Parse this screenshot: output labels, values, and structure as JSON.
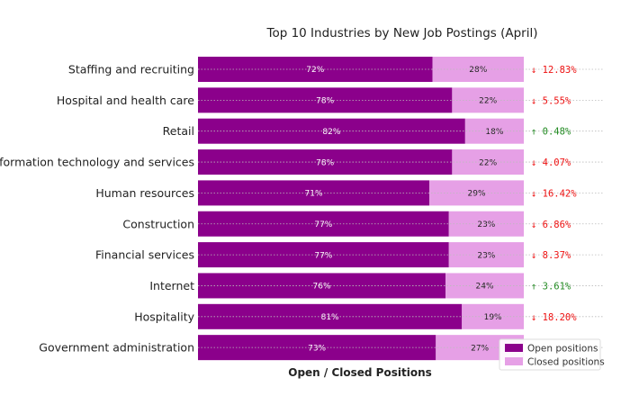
{
  "chart_data": {
    "type": "bar",
    "orientation": "horizontal",
    "stacked": true,
    "title": "Top 10 Industries by New Job Postings (April)",
    "xlabel": "Open / Closed Positions",
    "ylabel": "",
    "xlim": [
      0,
      100
    ],
    "grid": false,
    "legend_position": "bottom-right",
    "categories": [
      "Staffing and recruiting",
      "Hospital and health care",
      "Retail",
      "Information technology and services",
      "Human resources",
      "Construction",
      "Financial services",
      "Internet",
      "Hospitality",
      "Government administration"
    ],
    "series": [
      {
        "name": "Open positions",
        "color": "#8b008b",
        "values": [
          72,
          78,
          82,
          78,
          71,
          77,
          77,
          76,
          81,
          73
        ]
      },
      {
        "name": "Closed positions",
        "color": "#e6a0e6",
        "values": [
          28,
          22,
          18,
          22,
          29,
          23,
          23,
          24,
          19,
          27
        ]
      }
    ],
    "value_label_suffix": "%",
    "changes": [
      {
        "text": "↓ 12.83%",
        "direction": "down"
      },
      {
        "text": "↓ 5.55%",
        "direction": "down"
      },
      {
        "text": "↑ 0.48%",
        "direction": "up"
      },
      {
        "text": "↓ 4.07%",
        "direction": "down"
      },
      {
        "text": "↓ 16.42%",
        "direction": "down"
      },
      {
        "text": "↓ 6.86%",
        "direction": "down"
      },
      {
        "text": "↓ 8.37%",
        "direction": "down"
      },
      {
        "text": "↑ 3.61%",
        "direction": "up"
      },
      {
        "text": "↓ 18.20%",
        "direction": "down"
      },
      {
        "text": "",
        "direction": ""
      }
    ],
    "change_colors": {
      "up": "#228b22",
      "down": "#ee1111"
    }
  }
}
